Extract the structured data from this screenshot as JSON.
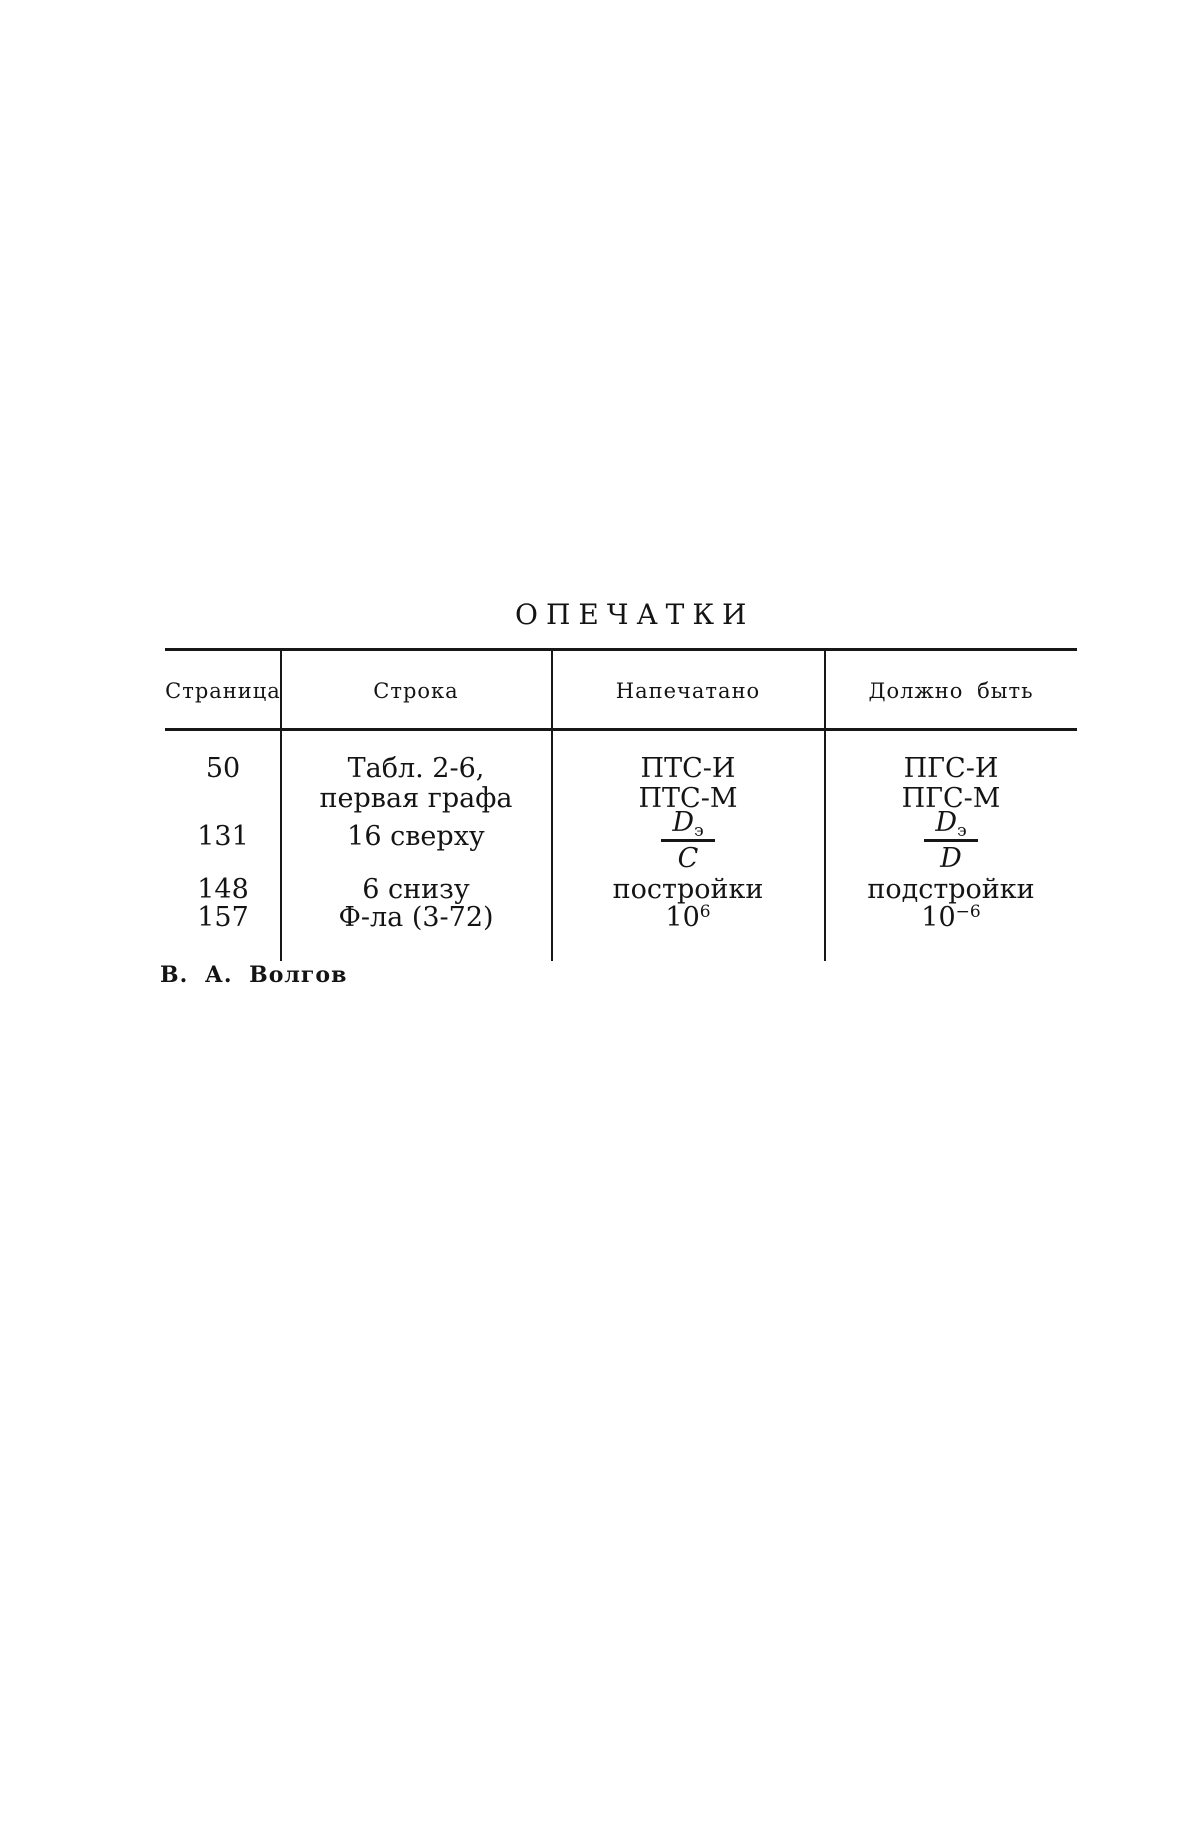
{
  "title": "ОПЕЧАТКИ",
  "signature": "В. А. Волгов",
  "headers": {
    "page": "Страница",
    "line": "Строка",
    "printed": "Напечатано",
    "correct": "Должно быть"
  },
  "row1": {
    "page": "50",
    "line1": "Табл. 2-6,",
    "line2": "первая графа",
    "printed1": "ПТС-И",
    "printed2": "ПТС-М",
    "correct1": "ПГС-И",
    "correct2": "ПГС-М"
  },
  "row2": {
    "page": "131",
    "line": "16 сверху",
    "num_base": "D",
    "num_sub": "э",
    "printed_den": "C",
    "correct_den": "D"
  },
  "row3": {
    "page": "148",
    "line": "6 снизу",
    "printed": "постройки",
    "correct": "подстройки"
  },
  "row4": {
    "page": "157",
    "line": "Ф-ла (3-72)",
    "printed_base": "10",
    "printed_exp": "6",
    "correct_base": "10",
    "correct_exp": "−6"
  }
}
